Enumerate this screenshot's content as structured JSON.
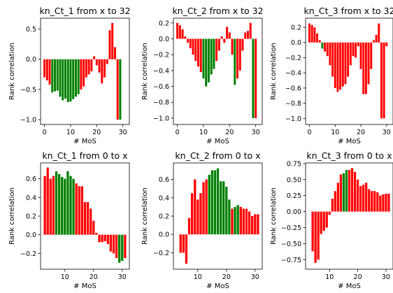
{
  "colors": {
    "positive": "#008000",
    "negative": "#ff0000"
  },
  "chart_data": [
    {
      "type": "bar",
      "title": "kn_Ct_1 from x to 32",
      "xlabel": "# MoS",
      "ylabel": "Rank correlation",
      "xlim": [
        -1.5,
        32.5
      ],
      "ylim": [
        -1.08,
        0.68
      ],
      "xticks": [
        0,
        10,
        20,
        30
      ],
      "yticks": [
        -1.0,
        -0.5,
        0.0,
        0.5
      ],
      "ytick_labels": [
        "−1.0",
        "−0.5",
        "0.0",
        "0.5"
      ],
      "x": [
        0,
        1,
        2,
        3,
        4,
        5,
        6,
        7,
        8,
        9,
        10,
        11,
        12,
        13,
        14,
        15,
        16,
        17,
        18,
        19,
        20,
        21,
        22,
        23,
        24,
        25,
        26,
        27,
        28,
        29,
        30
      ],
      "values": [
        -0.3,
        -0.35,
        -0.42,
        -0.55,
        -0.53,
        -0.52,
        -0.62,
        -0.68,
        -0.65,
        -0.71,
        -0.7,
        -0.66,
        -0.62,
        -0.58,
        -0.5,
        -0.45,
        -0.3,
        -0.25,
        -0.2,
        0.05,
        -0.1,
        -0.22,
        -0.4,
        -0.3,
        -0.08,
        0.48,
        0.6,
        0.2,
        -1.0,
        -1.0,
        0.0
      ],
      "colors": [
        "r",
        "r",
        "r",
        "g",
        "g",
        "g",
        "g",
        "g",
        "g",
        "g",
        "g",
        "g",
        "g",
        "g",
        "r",
        "r",
        "r",
        "r",
        "r",
        "r",
        "r",
        "r",
        "r",
        "r",
        "r",
        "r",
        "r",
        "r",
        "r",
        "g",
        "r"
      ]
    },
    {
      "type": "bar",
      "title": "kn_Ct_2 from x to 32",
      "xlabel": "# MoS",
      "ylabel": "Rank correlation",
      "xlim": [
        -1.5,
        32.5
      ],
      "ylim": [
        -1.08,
        0.26
      ],
      "xticks": [
        0,
        10,
        20,
        30
      ],
      "yticks": [
        -1.0,
        -0.8,
        -0.6,
        -0.4,
        -0.2,
        0.0,
        0.2
      ],
      "ytick_labels": [
        "−1.0",
        "−0.8",
        "−0.6",
        "−0.4",
        "−0.2",
        "0.0",
        "0.2"
      ],
      "x": [
        0,
        1,
        2,
        3,
        4,
        5,
        6,
        7,
        8,
        9,
        10,
        11,
        12,
        13,
        14,
        15,
        16,
        17,
        18,
        19,
        20,
        21,
        22,
        23,
        24,
        25,
        26,
        27,
        28,
        29,
        30
      ],
      "values": [
        0.2,
        0.17,
        0.12,
        0.03,
        -0.05,
        -0.12,
        -0.2,
        -0.28,
        -0.35,
        -0.42,
        -0.5,
        -0.6,
        -0.55,
        -0.45,
        -0.38,
        -0.28,
        -0.15,
        0.03,
        -0.05,
        0.15,
        0.08,
        -0.2,
        -0.58,
        -0.5,
        -0.4,
        -0.15,
        0.08,
        0.1,
        0.2,
        -1.0,
        -1.0
      ],
      "colors": [
        "r",
        "r",
        "r",
        "r",
        "r",
        "r",
        "r",
        "r",
        "r",
        "r",
        "g",
        "g",
        "g",
        "g",
        "g",
        "r",
        "r",
        "r",
        "r",
        "r",
        "r",
        "r",
        "g",
        "r",
        "r",
        "r",
        "r",
        "r",
        "r",
        "g",
        "r"
      ]
    },
    {
      "type": "bar",
      "title": "kn_Ct_3 from x to 32",
      "xlabel": "# MoS",
      "ylabel": "Rank correlation",
      "xlim": [
        -1.5,
        32.5
      ],
      "ylim": [
        -1.08,
        0.32
      ],
      "xticks": [
        0,
        10,
        20,
        30
      ],
      "yticks": [
        -1.0,
        -0.8,
        -0.6,
        -0.4,
        -0.2,
        0.0,
        0.2
      ],
      "ytick_labels": [
        "−1.0",
        "−0.8",
        "−0.6",
        "−0.4",
        "−0.2",
        "0.0",
        "0.2"
      ],
      "x": [
        0,
        1,
        2,
        3,
        4,
        5,
        6,
        7,
        8,
        9,
        10,
        11,
        12,
        13,
        14,
        15,
        16,
        17,
        18,
        19,
        20,
        21,
        22,
        23,
        24,
        25,
        26,
        27,
        28,
        29,
        30
      ],
      "values": [
        0.25,
        0.23,
        0.2,
        0.12,
        0.03,
        -0.08,
        -0.12,
        -0.18,
        -0.3,
        -0.45,
        -0.6,
        -0.65,
        -0.62,
        -0.58,
        -0.55,
        -0.45,
        -0.3,
        -0.18,
        -0.2,
        -0.05,
        -0.35,
        -0.68,
        -0.68,
        -0.55,
        -0.35,
        0.03,
        0.1,
        0.25,
        -1.0,
        -1.0,
        -0.05
      ],
      "colors": [
        "r",
        "r",
        "r",
        "r",
        "r",
        "g",
        "r",
        "r",
        "r",
        "r",
        "r",
        "r",
        "r",
        "r",
        "r",
        "r",
        "r",
        "r",
        "r",
        "r",
        "r",
        "r",
        "r",
        "r",
        "r",
        "r",
        "r",
        "r",
        "r",
        "r",
        "r"
      ]
    },
    {
      "type": "bar",
      "title": "kn_Ct_1 from 0 to x",
      "xlabel": "# MoS",
      "ylabel": "Rank correlation",
      "xlim": [
        1.5,
        32.5
      ],
      "ylim": [
        -0.37,
        0.77
      ],
      "xticks": [
        10,
        20,
        30
      ],
      "yticks": [
        -0.2,
        0.0,
        0.2,
        0.4,
        0.6
      ],
      "ytick_labels": [
        "−0.2",
        "0.0",
        "0.2",
        "0.4",
        "0.6"
      ],
      "x": [
        3,
        4,
        5,
        6,
        7,
        8,
        9,
        10,
        11,
        12,
        13,
        14,
        15,
        16,
        17,
        18,
        19,
        20,
        21,
        22,
        23,
        24,
        25,
        26,
        27,
        28,
        29,
        30,
        31
      ],
      "values": [
        0.63,
        0.72,
        0.6,
        0.63,
        0.68,
        0.65,
        0.62,
        0.6,
        0.68,
        0.63,
        0.6,
        0.55,
        0.52,
        0.52,
        0.35,
        0.35,
        0.28,
        0.15,
        0.02,
        -0.08,
        -0.08,
        -0.07,
        -0.1,
        -0.18,
        -0.2,
        -0.25,
        -0.3,
        -0.28,
        -0.25
      ],
      "colors": [
        "r",
        "r",
        "r",
        "r",
        "g",
        "g",
        "g",
        "g",
        "g",
        "g",
        "g",
        "r",
        "r",
        "r",
        "r",
        "r",
        "r",
        "r",
        "r",
        "r",
        "r",
        "r",
        "r",
        "r",
        "r",
        "r",
        "g",
        "g",
        "r"
      ]
    },
    {
      "type": "bar",
      "title": "kn_Ct_2 from 0 to x",
      "xlabel": "# MoS",
      "ylabel": "Rank correlation",
      "xlim": [
        1.5,
        32.5
      ],
      "ylim": [
        -0.38,
        0.78
      ],
      "xticks": [
        10,
        20,
        30
      ],
      "yticks": [
        -0.2,
        0.0,
        0.2,
        0.4,
        0.6
      ],
      "ytick_labels": [
        "−0.2",
        "0.0",
        "0.2",
        "0.4",
        "0.6"
      ],
      "x": [
        4,
        5,
        6,
        7,
        8,
        9,
        10,
        11,
        12,
        13,
        14,
        15,
        16,
        17,
        18,
        19,
        20,
        21,
        22,
        23,
        24,
        25,
        26,
        27,
        28,
        29,
        30,
        31
      ],
      "values": [
        -0.2,
        -0.2,
        -0.32,
        0.18,
        0.45,
        0.6,
        0.38,
        0.45,
        0.57,
        0.6,
        0.65,
        0.7,
        0.7,
        0.72,
        0.58,
        0.58,
        0.52,
        0.38,
        0.28,
        0.3,
        0.32,
        0.3,
        0.28,
        0.28,
        0.25,
        0.2,
        0.22,
        0.22
      ],
      "colors": [
        "r",
        "r",
        "r",
        "r",
        "r",
        "r",
        "r",
        "r",
        "r",
        "r",
        "g",
        "g",
        "g",
        "g",
        "g",
        "g",
        "g",
        "g",
        "r",
        "g",
        "g",
        "r",
        "r",
        "r",
        "r",
        "r",
        "r",
        "r"
      ]
    },
    {
      "type": "bar",
      "title": "kn_Ct_3 from 0 to x",
      "xlabel": "# MoS",
      "ylabel": "Rank correlation",
      "xlim": [
        1.5,
        32.5
      ],
      "ylim": [
        -0.9,
        0.76
      ],
      "xticks": [
        10,
        20,
        30
      ],
      "yticks": [
        -0.75,
        -0.5,
        -0.25,
        0.0,
        0.25,
        0.5,
        0.75
      ],
      "ytick_labels": [
        "−0.75",
        "−0.50",
        "−0.25",
        "0.00",
        "0.25",
        "0.50",
        "0.75"
      ],
      "x": [
        4,
        5,
        6,
        7,
        8,
        9,
        10,
        11,
        12,
        13,
        14,
        15,
        16,
        17,
        18,
        19,
        20,
        21,
        22,
        23,
        24,
        25,
        26,
        27,
        28,
        29,
        30,
        31
      ],
      "values": [
        -0.62,
        -0.8,
        -0.75,
        -0.35,
        -0.3,
        -0.25,
        -0.05,
        0.2,
        0.32,
        0.45,
        0.58,
        0.6,
        0.65,
        0.65,
        0.68,
        0.62,
        0.5,
        0.4,
        0.42,
        0.45,
        0.35,
        0.32,
        0.32,
        0.3,
        0.25,
        0.27,
        0.28,
        0.28
      ],
      "colors": [
        "r",
        "r",
        "r",
        "r",
        "r",
        "r",
        "r",
        "r",
        "r",
        "r",
        "r",
        "g",
        "g",
        "r",
        "r",
        "r",
        "r",
        "r",
        "r",
        "r",
        "r",
        "r",
        "r",
        "r",
        "r",
        "r",
        "r",
        "r"
      ]
    }
  ]
}
